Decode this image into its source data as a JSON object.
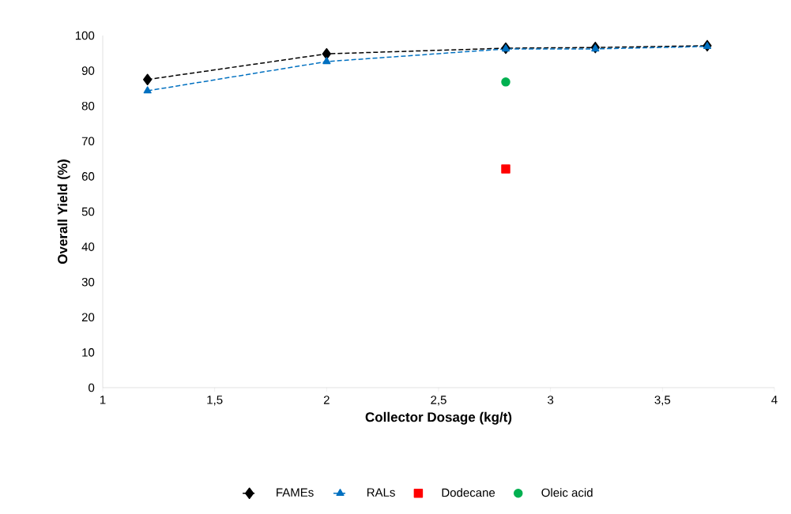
{
  "chart_data": {
    "type": "line",
    "xlabel": "Collector Dosage (kg/t)",
    "ylabel": "Overall Yield (%)",
    "xlim": [
      1,
      4
    ],
    "ylim": [
      0,
      100
    ],
    "xticks": [
      1,
      {
        "value": 1.5,
        "label": "1,5"
      },
      2,
      {
        "value": 2.5,
        "label": "2,5"
      },
      3,
      {
        "value": 3.5,
        "label": "3,5"
      },
      4
    ],
    "yticks": [
      0,
      10,
      20,
      30,
      40,
      50,
      60,
      70,
      80,
      90,
      100
    ],
    "grid": false,
    "legend": "bottom",
    "series": [
      {
        "name": "FAMEs",
        "color": "#000000",
        "marker": "diamond",
        "line_style": "dashed",
        "x": [
          1.2,
          2,
          2.8,
          3.2,
          3.7
        ],
        "values": [
          87.5,
          94.8,
          96.4,
          96.6,
          97.1
        ]
      },
      {
        "name": "RALs",
        "color": "#0070c0",
        "marker": "triangle",
        "line_style": "dashed",
        "x": [
          1.2,
          2,
          2.8,
          3.2,
          3.7
        ],
        "values": [
          84.3,
          92.6,
          96.2,
          96.2,
          96.9
        ]
      },
      {
        "name": "Dodecane",
        "type": "scatter",
        "color": "#ff0000",
        "marker": "square",
        "x": [
          2.8
        ],
        "values": [
          62.1
        ]
      },
      {
        "name": "Oleic acid",
        "type": "scatter",
        "color": "#00b050",
        "marker": "circle",
        "x": [
          2.8
        ],
        "values": [
          86.8
        ]
      }
    ]
  }
}
